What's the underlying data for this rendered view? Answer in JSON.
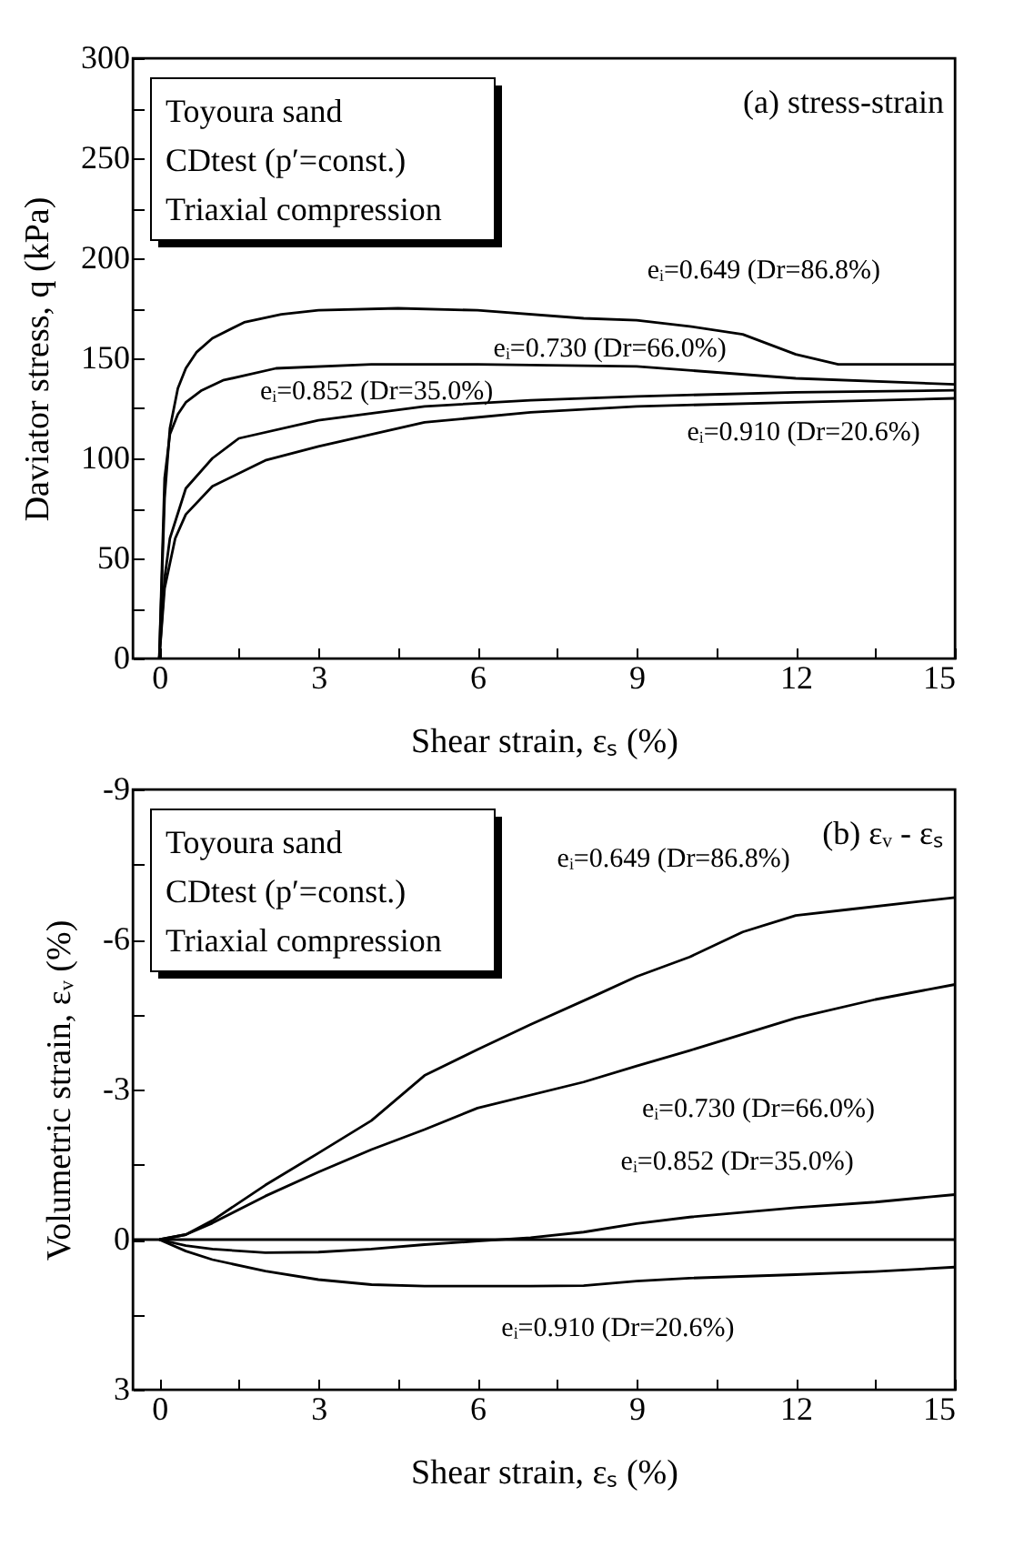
{
  "chart_data": [
    {
      "type": "line",
      "xlabel": "Shear strain, εₛ (%)",
      "ylabel": "Daviator stress, q (kPa)",
      "annotations": [
        "Toyoura sand",
        "CDtest (p′=const.)",
        "Triaxial compression",
        "(a) stress-strain"
      ],
      "xlim": [
        -0.5,
        15
      ],
      "xticks": [
        0,
        {
          "value": 1.5,
          "label": null
        },
        3,
        {
          "value": 4.5,
          "label": null
        },
        6,
        {
          "value": 7.5,
          "label": null
        },
        9,
        {
          "value": 10.5,
          "label": null
        },
        12,
        {
          "value": 13.5,
          "label": null
        },
        15
      ],
      "ylim": [
        0,
        300
      ],
      "yticks": [
        0,
        {
          "value": 25,
          "label": null
        },
        50,
        {
          "value": 75,
          "label": null
        },
        100,
        {
          "value": 125,
          "label": null
        },
        150,
        {
          "value": 175,
          "label": null
        },
        200,
        {
          "value": 225,
          "label": null
        },
        250,
        {
          "value": 275,
          "label": null
        },
        300
      ],
      "line_style": "solid",
      "series": [
        {
          "name": "eᵢ=0.649 (Dr=86.8%)",
          "color": "#000000",
          "x": [
            0,
            0.1,
            0.2,
            0.35,
            0.5,
            0.7,
            1,
            1.6,
            2.3,
            3,
            4.5,
            6,
            8,
            9,
            10,
            11,
            12,
            12.8,
            15
          ],
          "values": [
            0,
            80,
            115,
            135,
            145,
            153,
            160,
            168,
            172,
            174,
            175,
            174,
            170,
            169,
            166,
            162,
            152,
            147,
            147
          ]
        },
        {
          "name": "eᵢ=0.730 (Dr=66.0%)",
          "color": "#000000",
          "x": [
            0,
            0.1,
            0.2,
            0.35,
            0.5,
            0.8,
            1.2,
            2.2,
            4,
            6,
            9,
            12,
            15
          ],
          "values": [
            0,
            90,
            112,
            122,
            128,
            134,
            139,
            145,
            147,
            147,
            146,
            140,
            137
          ]
        },
        {
          "name": "eᵢ=0.852 (Dr=35.0%)",
          "color": "#000000",
          "x": [
            0,
            0.1,
            0.2,
            0.5,
            1,
            1.5,
            3,
            5,
            7,
            9,
            12,
            15
          ],
          "values": [
            0,
            40,
            60,
            85,
            100,
            110,
            119,
            126,
            129,
            131,
            133,
            134
          ]
        },
        {
          "name": "eᵢ=0.910 (Dr=20.6%)",
          "color": "#000000",
          "x": [
            0,
            0.1,
            0.3,
            0.5,
            1,
            2,
            3,
            5,
            7,
            9,
            12,
            15
          ],
          "values": [
            0,
            35,
            60,
            72,
            86,
            99,
            106,
            118,
            123,
            126,
            128,
            130
          ]
        }
      ]
    },
    {
      "type": "line",
      "xlabel": "Shear strain, εₛ (%)",
      "ylabel": "Volumetric strain, εᵥ (%)",
      "annotations": [
        "Toyoura sand",
        "CDtest (p′=const.)",
        "Triaxial compression",
        "(b) εᵥ - εₛ"
      ],
      "xlim": [
        -0.5,
        15
      ],
      "xticks": [
        0,
        {
          "value": 1.5,
          "label": null
        },
        3,
        {
          "value": 4.5,
          "label": null
        },
        6,
        {
          "value": 7.5,
          "label": null
        },
        9,
        {
          "value": 10.5,
          "label": null
        },
        12,
        {
          "value": 13.5,
          "label": null
        },
        15
      ],
      "ylim": [
        3,
        -9
      ],
      "yticks": [
        3,
        {
          "value": 1.5,
          "label": null
        },
        0,
        {
          "value": -1.5,
          "label": null
        },
        -3,
        {
          "value": -4.5,
          "label": null
        },
        -6,
        {
          "value": -7.5,
          "label": null
        },
        -9
      ],
      "line_style": "solid",
      "ref_lines": [
        {
          "axis": "y",
          "value": 0,
          "label": null,
          "color": "#000000"
        }
      ],
      "series": [
        {
          "name": "eᵢ=0.649 (Dr=86.8%)",
          "color": "#000000",
          "x": [
            0,
            0.5,
            1,
            2,
            3,
            4,
            5,
            6,
            7,
            8.2,
            9,
            10,
            11,
            12,
            13,
            15
          ],
          "values": [
            0,
            -0.1,
            -0.38,
            -1.09,
            -1.73,
            -2.38,
            -3.28,
            -3.8,
            -4.3,
            -4.87,
            -5.26,
            -5.65,
            -6.15,
            -6.48,
            -6.6,
            -6.84
          ]
        },
        {
          "name": "eᵢ=0.730 (Dr=66.0%)",
          "color": "#000000",
          "x": [
            0,
            0.5,
            1,
            2,
            3,
            4,
            5,
            6,
            8,
            9,
            10,
            12,
            13.5,
            15
          ],
          "values": [
            0,
            -0.1,
            -0.33,
            -0.87,
            -1.35,
            -1.8,
            -2.2,
            -2.63,
            -3.15,
            -3.47,
            -3.78,
            -4.43,
            -4.8,
            -5.1
          ]
        },
        {
          "name": "eᵢ=0.852 (Dr=35.0%)",
          "color": "#000000",
          "x": [
            0,
            0.5,
            1,
            2,
            3,
            4,
            5,
            6,
            7,
            8,
            9,
            10,
            12,
            13.5,
            15
          ],
          "values": [
            0,
            0.12,
            0.19,
            0.26,
            0.25,
            0.19,
            0.1,
            0.03,
            -0.04,
            -0.15,
            -0.32,
            -0.45,
            -0.64,
            -0.75,
            -0.9
          ]
        },
        {
          "name": "eᵢ=0.910 (Dr=20.6%)",
          "color": "#000000",
          "x": [
            0,
            0.5,
            1,
            2,
            3,
            4,
            5,
            7,
            8,
            9,
            10,
            12,
            13.5,
            15
          ],
          "values": [
            0,
            0.23,
            0.4,
            0.63,
            0.8,
            0.9,
            0.93,
            0.93,
            0.92,
            0.83,
            0.77,
            0.7,
            0.64,
            0.55
          ]
        }
      ]
    }
  ]
}
